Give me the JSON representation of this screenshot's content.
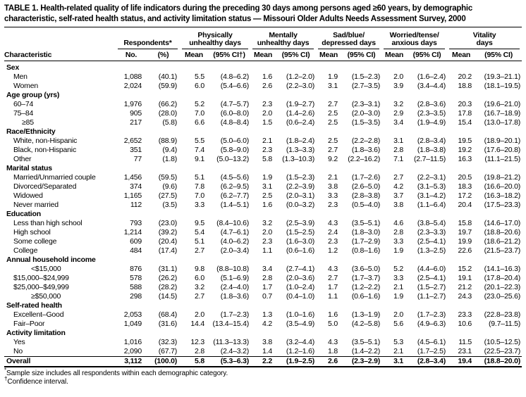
{
  "colors": {
    "text": "#000000",
    "background": "#ffffff"
  },
  "title": "TABLE 1. Health-related quality of life indicators during the preceding 30 days among persons aged ≥60 years, by demographic characteristic, self-rated health status, and activity limitation status — Missouri Older Adults Needs Assessment Survey, 2000",
  "header": {
    "characteristic": "Characteristic",
    "respondents": {
      "label": "Respondents*",
      "no": "No.",
      "pct": "(%)"
    },
    "groups": [
      {
        "line1": "Physically",
        "line2": "unhealthy days",
        "mean": "Mean",
        "ci": "(95% CI†)"
      },
      {
        "line1": "Mentally",
        "line2": "unhealthy days",
        "mean": "Mean",
        "ci": "(95% CI)"
      },
      {
        "line1": "Sad/blue/",
        "line2": "depressed days",
        "mean": "Mean",
        "ci": "(95% CI)"
      },
      {
        "line1": "Worried/tense/",
        "line2": "anxious days",
        "mean": "Mean",
        "ci": "(95% CI)"
      },
      {
        "line1": "Vitality",
        "line2": "days",
        "mean": "Mean",
        "ci": "(95% CI)"
      }
    ]
  },
  "sections": [
    {
      "label": "Sex",
      "rows": [
        {
          "label": "Men",
          "no": "1,088",
          "pct": "(40.1)",
          "vals": [
            "5.5",
            "(4.8–6.2)",
            "1.6",
            "(1.2–2.0)",
            "1.9",
            "(1.5–2.3)",
            "2.0",
            "(1.6–2.4)",
            "20.2",
            "(19.3–21.1)"
          ]
        },
        {
          "label": "Women",
          "no": "2,024",
          "pct": "(59.9)",
          "vals": [
            "6.0",
            "(5.4–6.6)",
            "2.6",
            "(2.2–3.0)",
            "3.1",
            "(2.7–3.5)",
            "3.9",
            "(3.4–4.4)",
            "18.8",
            "(18.1–19.5)"
          ]
        }
      ]
    },
    {
      "label": "Age group (yrs)",
      "rows": [
        {
          "label": "60–74",
          "no": "1,976",
          "pct": "(66.2)",
          "vals": [
            "5.2",
            "(4.7–5.7)",
            "2.3",
            "(1.9–2.7)",
            "2.7",
            "(2.3–3.1)",
            "3.2",
            "(2.8–3.6)",
            "20.3",
            "(19.6–21.0)"
          ]
        },
        {
          "label": "75–84",
          "no": "905",
          "pct": "(28.0)",
          "vals": [
            "7.0",
            "(6.0–8.0)",
            "2.0",
            "(1.4–2.6)",
            "2.5",
            "(2.0–3.0)",
            "2.9",
            "(2.3–3.5)",
            "17.8",
            "(16.7–18.9)"
          ]
        },
        {
          "label": "≥85",
          "no": "217",
          "pct": "(5.8)",
          "indent": 2,
          "vals": [
            "6.6",
            "(4.8–8.4)",
            "1.5",
            "(0.6–2.4)",
            "2.5",
            "(1.5–3.5)",
            "3.4",
            "(1.9–4.9)",
            "15.4",
            "(13.0–17.8)"
          ]
        }
      ]
    },
    {
      "label": "Race/Ethnicity",
      "rows": [
        {
          "label": "White, non-Hispanic",
          "no": "2,652",
          "pct": "(88.9)",
          "vals": [
            "5.5",
            "(5.0–6.0)",
            "2.1",
            "(1.8–2.4)",
            "2.5",
            "(2.2–2.8)",
            "3.1",
            "(2.8–3.4)",
            "19.5",
            "(18.9–20.1)"
          ]
        },
        {
          "label": "Black, non-Hispanic",
          "no": "351",
          "pct": "(9.4)",
          "vals": [
            "7.4",
            "(5.8–9.0)",
            "2.3",
            "(1.3–3.3)",
            "2.7",
            "(1.8–3.6)",
            "2.8",
            "(1.8–3.8)",
            "19.2",
            "(17.6–20.8)"
          ]
        },
        {
          "label": "Other",
          "no": "77",
          "pct": "(1.8)",
          "vals": [
            "9.1",
            "(5.0–13.2)",
            "5.8",
            "(1.3–10.3)",
            "9.2",
            "(2.2–16.2)",
            "7.1",
            "(2.7–11.5)",
            "16.3",
            "(11.1–21.5)"
          ]
        }
      ]
    },
    {
      "label": "Marital status",
      "rows": [
        {
          "label": "Married/Unmarried couple",
          "no": "1,456",
          "pct": "(59.5)",
          "vals": [
            "5.1",
            "(4.5–5.6)",
            "1.9",
            "(1.5–2.3)",
            "2.1",
            "(1.7–2.6)",
            "2.7",
            "(2.2–3.1)",
            "20.5",
            "(19.8–21.2)"
          ]
        },
        {
          "label": "Divorced/Separated",
          "no": "374",
          "pct": "(9.6)",
          "vals": [
            "7.8",
            "(6.2–9.5)",
            "3.1",
            "(2.2–3.9)",
            "3.8",
            "(2.6–5.0)",
            "4.2",
            "(3.1–5.3)",
            "18.3",
            "(16.6–20.0)"
          ]
        },
        {
          "label": "Widowed",
          "no": "1,165",
          "pct": "(27.5)",
          "vals": [
            "7.0",
            "(6.2–7.7)",
            "2.5",
            "(2.0–3.1)",
            "3.3",
            "(2.8–3.8)",
            "3.7",
            "(3.1–4.2)",
            "17.2",
            "(16.3–18.2)"
          ]
        },
        {
          "label": "Never married",
          "no": "112",
          "pct": "(3.5)",
          "vals": [
            "3.3",
            "(1.4–5.1)",
            "1.6",
            "(0.0–3.2)",
            "2.3",
            "(0.5–4.0)",
            "3.8",
            "(1.1–6.4)",
            "20.4",
            "(17.5–23.3)"
          ]
        }
      ]
    },
    {
      "label": "Education",
      "rows": [
        {
          "label": "Less than high school",
          "no": "793",
          "pct": "(23.0)",
          "vals": [
            "9.5",
            "(8.4–10.6)",
            "3.2",
            "(2.5–3.9)",
            "4.3",
            "(3.5–5.1)",
            "4.6",
            "(3.8–5.4)",
            "15.8",
            "(14.6–17.0)"
          ]
        },
        {
          "label": "High school",
          "no": "1,214",
          "pct": "(39.2)",
          "vals": [
            "5.4",
            "(4.7–6.1)",
            "2.0",
            "(1.5–2.5)",
            "2.4",
            "(1.8–3.0)",
            "2.8",
            "(2.3–3.3)",
            "19.7",
            "(18.8–20.6)"
          ]
        },
        {
          "label": "Some college",
          "no": "609",
          "pct": "(20.4)",
          "vals": [
            "5.1",
            "(4.0–6.2)",
            "2.3",
            "(1.6–3.0)",
            "2.3",
            "(1.7–2.9)",
            "3.3",
            "(2.5–4.1)",
            "19.9",
            "(18.6–21.2)"
          ]
        },
        {
          "label": "College",
          "no": "484",
          "pct": "(17.4)",
          "vals": [
            "2.7",
            "(2.0–3.4)",
            "1.1",
            "(0.6–1.6)",
            "1.2",
            "(0.8–1.6)",
            "1.9",
            "(1.3–2.5)",
            "22.6",
            "(21.5–23.7)"
          ]
        }
      ]
    },
    {
      "label": "Annual household income",
      "rows": [
        {
          "label": "<$15,000",
          "no": "876",
          "pct": "(31.1)",
          "indent": 3,
          "vals": [
            "9.8",
            "(8.8–10.8)",
            "3.4",
            "(2.7–4.1)",
            "4.3",
            "(3.6–5.0)",
            "5.2",
            "(4.4–6.0)",
            "15.2",
            "(14.1–16.3)"
          ]
        },
        {
          "label": "$15,000–$24,999",
          "no": "578",
          "pct": "(26.2)",
          "vals": [
            "6.0",
            "(5.1–6.9)",
            "2.8",
            "(2.0–3.6)",
            "2.7",
            "(1.7–3.7)",
            "3.3",
            "(2.5–4.1)",
            "19.1",
            "(17.8–20.4)"
          ]
        },
        {
          "label": "$25,000–$49,999",
          "no": "588",
          "pct": "(28.2)",
          "vals": [
            "3.2",
            "(2.4–4.0)",
            "1.7",
            "(1.0–2.4)",
            "1.7",
            "(1.2–2.2)",
            "2.1",
            "(1.5–2.7)",
            "21.2",
            "(20.1–22.3)"
          ]
        },
        {
          "label": "≥$50,000",
          "no": "298",
          "pct": "(14.5)",
          "indent": 3,
          "vals": [
            "2.7",
            "(1.8–3.6)",
            "0.7",
            "(0.4–1.0)",
            "1.1",
            "(0.6–1.6)",
            "1.9",
            "(1.1–2.7)",
            "24.3",
            "(23.0–25.6)"
          ]
        }
      ]
    },
    {
      "label": "Self-rated health",
      "rows": [
        {
          "label": "Excellent–Good",
          "no": "2,053",
          "pct": "(68.4)",
          "vals": [
            "2.0",
            "(1.7–2.3)",
            "1.3",
            "(1.0–1.6)",
            "1.6",
            "(1.3–1.9)",
            "2.0",
            "(1.7–2.3)",
            "23.3",
            "(22.8–23.8)"
          ]
        },
        {
          "label": "Fair–Poor",
          "no": "1,049",
          "pct": "(31.6)",
          "vals": [
            "14.4",
            "(13.4–15.4)",
            "4.2",
            "(3.5–4.9)",
            "5.0",
            "(4.2–5.8)",
            "5.6",
            "(4.9–6.3)",
            "10.6",
            "(9.7–11.5)"
          ]
        }
      ]
    },
    {
      "label": "Activity limitation",
      "rows": [
        {
          "label": "Yes",
          "no": "1,016",
          "pct": "(32.3)",
          "vals": [
            "12.3",
            "(11.3–13.3)",
            "3.8",
            "(3.2–4.4)",
            "4.3",
            "(3.5–5.1)",
            "5.3",
            "(4.5–6.1)",
            "11.5",
            "(10.5–12.5)"
          ]
        },
        {
          "label": "No",
          "no": "2,090",
          "pct": "(67.7)",
          "vals": [
            "2.8",
            "(2.4–3.2)",
            "1.4",
            "(1.2–1.6)",
            "1.8",
            "(1.4–2.2)",
            "2.1",
            "(1.7–2.5)",
            "23.1",
            "(22.5–23.7)"
          ]
        }
      ]
    }
  ],
  "overall": {
    "label": "Overall",
    "no": "3,112",
    "pct": "(100.0)",
    "vals": [
      "5.8",
      "(5.3–6.3)",
      "2.2",
      "(1.9–2.5)",
      "2.6",
      "(2.3–2.9)",
      "3.1",
      "(2.8–3.4)",
      "19.4",
      "(18.8–20.0)"
    ]
  },
  "footnotes": [
    {
      "marker": "*",
      "text": "Sample size includes all respondents within each demographic category."
    },
    {
      "marker": "†",
      "text": "Confidence interval."
    }
  ]
}
